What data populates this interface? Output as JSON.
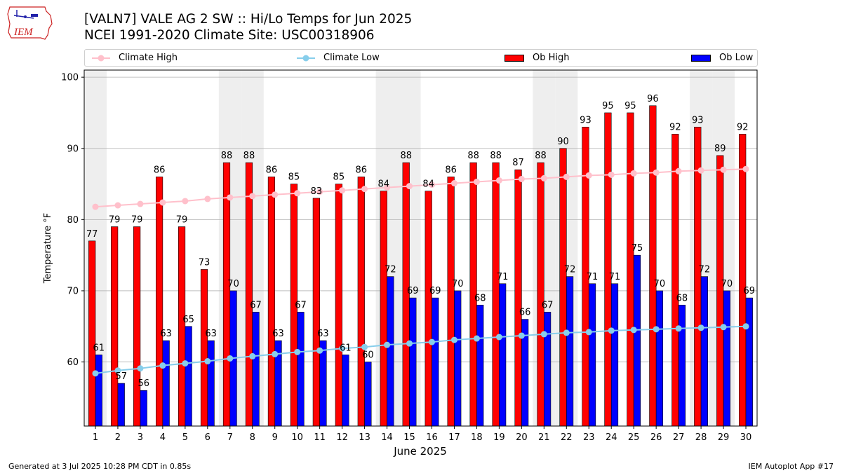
{
  "header": {
    "title_line1": "[VALN7] VALE AG 2 SW :: Hi/Lo Temps for Jun 2025",
    "title_line2": "NCEI 1991-2020 Climate Site: USC00318906",
    "logo_text": "IEM"
  },
  "footer": {
    "generated": "Generated at 3 Jul 2025 10:28 PM CDT in 0.85s",
    "app": "IEM Autoplot App #17"
  },
  "colors": {
    "ob_high": "#ff0000",
    "ob_low": "#0000ff",
    "climate_high": "#ffc0cb",
    "climate_low": "#87ceeb",
    "weekend_shade": "#eeeeee",
    "grid": "#b0b0b0"
  },
  "chart_data": {
    "type": "bar",
    "xlabel": "June 2025",
    "ylabel": "Temperature °F",
    "ylim": [
      51,
      101
    ],
    "yticks": [
      60,
      70,
      80,
      90,
      100
    ],
    "grid": "horizontal",
    "legend_position": "top",
    "categories": [
      "1",
      "2",
      "3",
      "4",
      "5",
      "6",
      "7",
      "8",
      "9",
      "10",
      "11",
      "12",
      "13",
      "14",
      "15",
      "16",
      "17",
      "18",
      "19",
      "20",
      "21",
      "22",
      "23",
      "24",
      "25",
      "26",
      "27",
      "28",
      "29",
      "30"
    ],
    "weekend_days": [
      1,
      7,
      8,
      14,
      15,
      21,
      22,
      28,
      29
    ],
    "series": [
      {
        "name": "Ob High",
        "kind": "bar",
        "color": "#ff0000",
        "values": [
          77,
          79,
          79,
          86,
          79,
          73,
          88,
          88,
          86,
          85,
          83,
          85,
          86,
          84,
          88,
          84,
          86,
          88,
          88,
          87,
          88,
          90,
          93,
          95,
          95,
          96,
          92,
          93,
          89,
          92
        ]
      },
      {
        "name": "Ob Low",
        "kind": "bar",
        "color": "#0000ff",
        "values": [
          61,
          57,
          56,
          63,
          65,
          63,
          70,
          67,
          63,
          67,
          63,
          61,
          60,
          72,
          69,
          69,
          70,
          68,
          71,
          66,
          67,
          72,
          71,
          71,
          75,
          70,
          68,
          72,
          70,
          69
        ]
      },
      {
        "name": "Climate High",
        "kind": "line",
        "color": "#ffc0cb",
        "values": [
          81.8,
          82.0,
          82.2,
          82.4,
          82.6,
          82.9,
          83.1,
          83.3,
          83.5,
          83.7,
          83.9,
          84.1,
          84.3,
          84.5,
          84.7,
          84.9,
          85.1,
          85.3,
          85.5,
          85.7,
          85.8,
          86.0,
          86.2,
          86.3,
          86.5,
          86.6,
          86.8,
          86.9,
          87.0,
          87.1
        ]
      },
      {
        "name": "Climate Low",
        "kind": "line",
        "color": "#87ceeb",
        "values": [
          58.4,
          58.8,
          59.1,
          59.5,
          59.8,
          60.1,
          60.5,
          60.8,
          61.1,
          61.4,
          61.6,
          61.9,
          62.1,
          62.4,
          62.6,
          62.8,
          63.1,
          63.3,
          63.5,
          63.7,
          63.9,
          64.1,
          64.2,
          64.4,
          64.5,
          64.6,
          64.7,
          64.8,
          64.9,
          65.0
        ]
      }
    ]
  }
}
